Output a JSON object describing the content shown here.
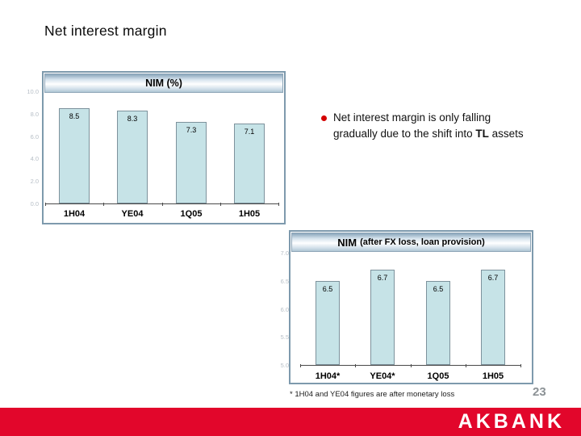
{
  "slide": {
    "title": "Net interest margin",
    "page_number": "23",
    "footnote": "* 1H04 and YE04 figures are after monetary loss",
    "logo_text": "AKBANK"
  },
  "bullet": {
    "text_before": "Net interest margin is only falling gradually due to the shift into ",
    "bold_text": "TL",
    "text_after": " assets"
  },
  "colors": {
    "accent_red": "#E2062B",
    "bullet_red": "#D40000",
    "bar_fill": "#C6E3E7",
    "bar_border": "#7D929C",
    "chart_border": "#7E9AAD",
    "page_number_gray": "#8C9296"
  },
  "chart_data": [
    {
      "type": "bar",
      "title": "NIM (%)",
      "categories": [
        "1H04",
        "YE04",
        "1Q05",
        "1H05"
      ],
      "values": [
        8.5,
        8.3,
        7.3,
        7.1
      ],
      "ylim": [
        0,
        10
      ],
      "yticks": [
        "10.0",
        "8.0",
        "6.0",
        "4.0",
        "2.0",
        "0.0"
      ],
      "grid": false,
      "legend": "none",
      "value_labels": "inside-top"
    },
    {
      "type": "bar",
      "title_main": "NIM",
      "title_sub": "(after FX loss, loan provision)",
      "title": "NIM (after FX loss, loan provision)",
      "categories": [
        "1H04*",
        "YE04*",
        "1Q05",
        "1H05"
      ],
      "values": [
        6.5,
        6.7,
        6.5,
        6.7
      ],
      "ylim": [
        5.0,
        7.0
      ],
      "yticks": [
        "7.0",
        "6.5",
        "6.0",
        "5.5",
        "5.0"
      ],
      "grid": false,
      "legend": "none",
      "value_labels": "inside-top"
    }
  ]
}
